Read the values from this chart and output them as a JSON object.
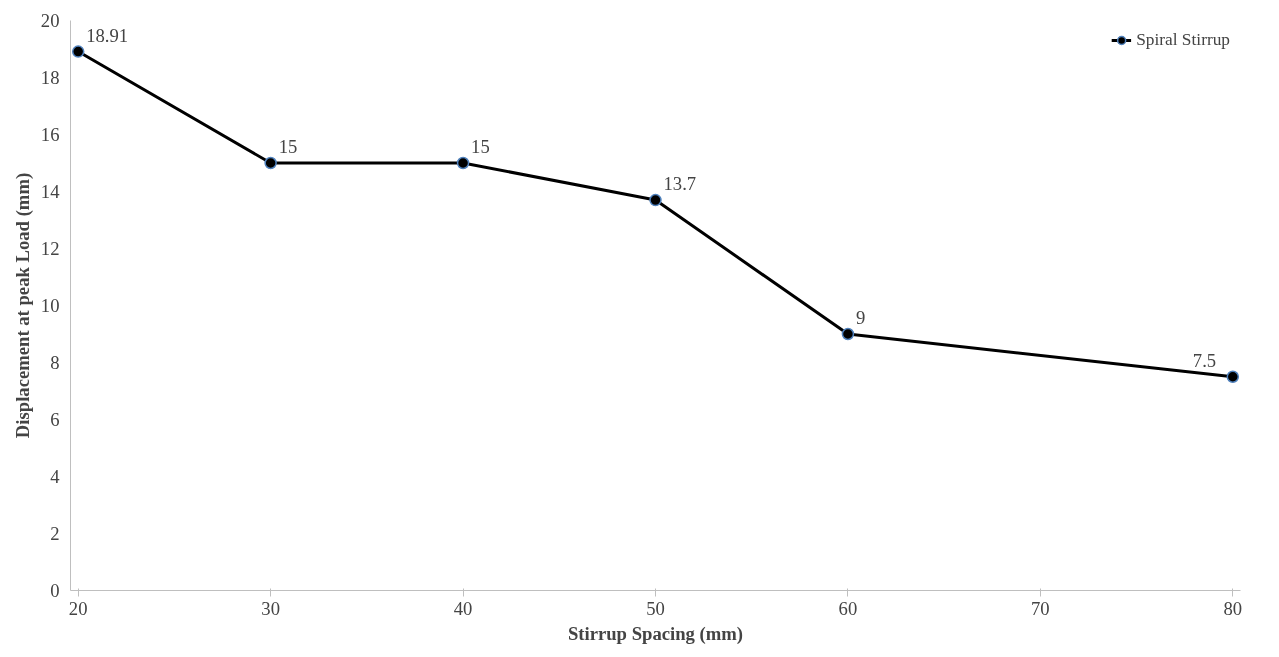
{
  "chart_data": {
    "type": "line",
    "xlabel": "Stirrup Spacing (mm)",
    "ylabel": "Displacement at peak Load (mm)",
    "categories": [
      "20",
      "30",
      "40",
      "50",
      "60",
      "70",
      "80"
    ],
    "series": [
      {
        "name": "Spiral Stirrup",
        "color": "#000000",
        "values": [
          18.91,
          15,
          15,
          13.7,
          9,
          null,
          7.5
        ]
      }
    ],
    "ylim": [
      0,
      20
    ],
    "yticks": [
      0,
      2,
      4,
      6,
      8,
      10,
      12,
      14,
      16,
      18,
      20
    ],
    "grid": false,
    "legend": "top right",
    "marker": "circle",
    "line_style": "solid",
    "data_labels": true
  }
}
